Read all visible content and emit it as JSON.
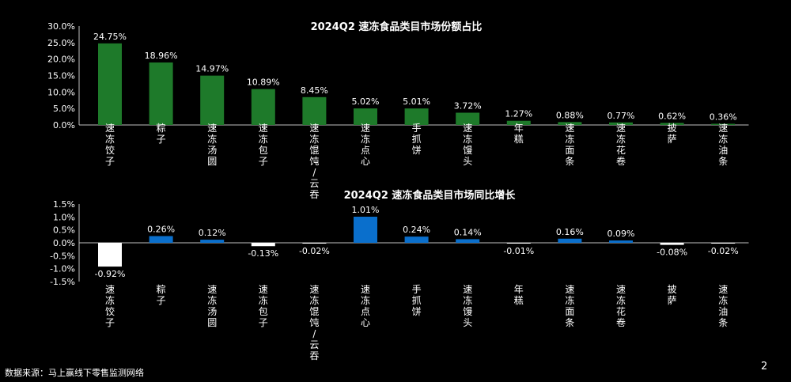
{
  "chart_data": [
    {
      "type": "bar",
      "title": "2024Q2 速冻食品类目市场份额占比",
      "categories": [
        "速冻饺子",
        "粽子",
        "速冻汤圆",
        "速冻包子",
        "速冻馄饨/云吞",
        "速冻点心",
        "手抓饼",
        "速冻馒头",
        "年糕",
        "速冻面条",
        "速冻花卷",
        "披萨",
        "速冻油条"
      ],
      "values": [
        24.75,
        18.96,
        14.97,
        10.89,
        8.45,
        5.02,
        5.01,
        3.72,
        1.27,
        0.88,
        0.77,
        0.62,
        0.36
      ],
      "data_labels": [
        "24.75%",
        "18.96%",
        "14.97%",
        "10.89%",
        "8.45%",
        "5.02%",
        "5.01%",
        "3.72%",
        "1.27%",
        "0.88%",
        "0.77%",
        "0.62%",
        "0.36%"
      ],
      "yticks": [
        "0.0%",
        "5.0%",
        "10.0%",
        "15.0%",
        "20.0%",
        "25.0%",
        "30.0%"
      ],
      "ylim": [
        0,
        30
      ],
      "grid": false,
      "color": "#1e7a2a"
    },
    {
      "type": "bar",
      "title": "2024Q2 速冻食品类目市场同比增长",
      "categories": [
        "速冻饺子",
        "粽子",
        "速冻汤圆",
        "速冻包子",
        "速冻馄饨/云吞",
        "速冻点心",
        "手抓饼",
        "速冻馒头",
        "年糕",
        "速冻面条",
        "速冻花卷",
        "披萨",
        "速冻油条"
      ],
      "values": [
        -0.92,
        0.26,
        0.12,
        -0.13,
        -0.02,
        1.01,
        0.24,
        0.14,
        -0.01,
        0.16,
        0.09,
        -0.08,
        -0.02
      ],
      "data_labels": [
        "-0.92%",
        "0.26%",
        "0.12%",
        "-0.13%",
        "-0.02%",
        "1.01%",
        "0.24%",
        "0.14%",
        "-0.01%",
        "0.16%",
        "0.09%",
        "-0.08%",
        "-0.02%"
      ],
      "yticks": [
        "-1.5%",
        "-1.0%",
        "-0.5%",
        "0.0%",
        "0.5%",
        "1.0%",
        "1.5%"
      ],
      "ylim": [
        -1.5,
        1.5
      ],
      "grid": false,
      "positive_color": "#0a6fcc",
      "negative_color": "#ffffff"
    }
  ],
  "footer": {
    "source": "数据来源：马上赢线下零售监测网络",
    "page_number": "2"
  }
}
